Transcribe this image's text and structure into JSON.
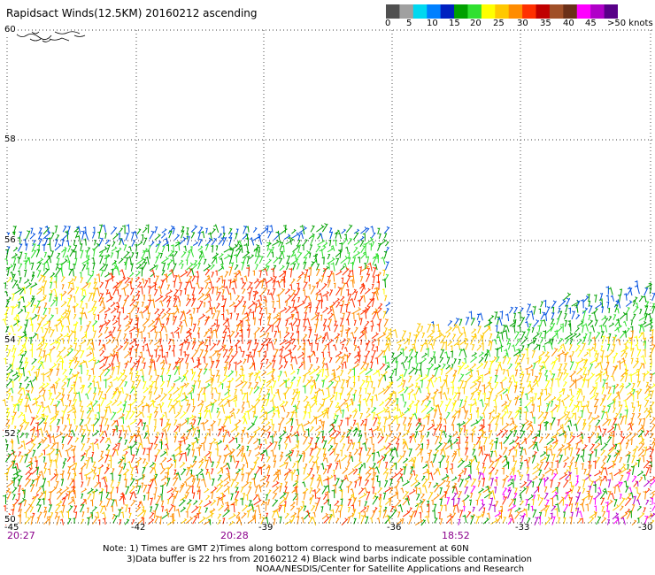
{
  "title": "Rapidsact Winds(12.5KM) 20160212 ascending",
  "colorbar": {
    "colors": [
      "#505050",
      "#a0a0a0",
      "#00d8f0",
      "#0080ff",
      "#0020c0",
      "#00a000",
      "#30e030",
      "#ffff00",
      "#ffc800",
      "#ff8c00",
      "#ff3000",
      "#c00000",
      "#a05028",
      "#6a3018",
      "#ff00ff",
      "#b000c8",
      "#580088"
    ],
    "labels": [
      "0",
      "5",
      "10",
      "15",
      "20",
      "25",
      "30",
      "35",
      "40",
      "45",
      ">50 knots"
    ]
  },
  "map": {
    "lat_labels": [
      "60",
      "58",
      "56",
      "54",
      "52",
      "50"
    ],
    "lon_labels": [
      "-45",
      "-42",
      "-39",
      "-36",
      "-33",
      "-30"
    ],
    "times": [
      "20:27",
      "20:28",
      "18:52"
    ]
  },
  "note": {
    "line1": "Note: 1) Times are GMT 2)Times along bottom correspond to measurement at 60N",
    "line2": "3)Data buffer is 22 hrs from 20160212 4) Black wind barbs indicate possible contamination",
    "line3": "NOAA/NESDIS/Center for Satellite Applications and Research"
  }
}
